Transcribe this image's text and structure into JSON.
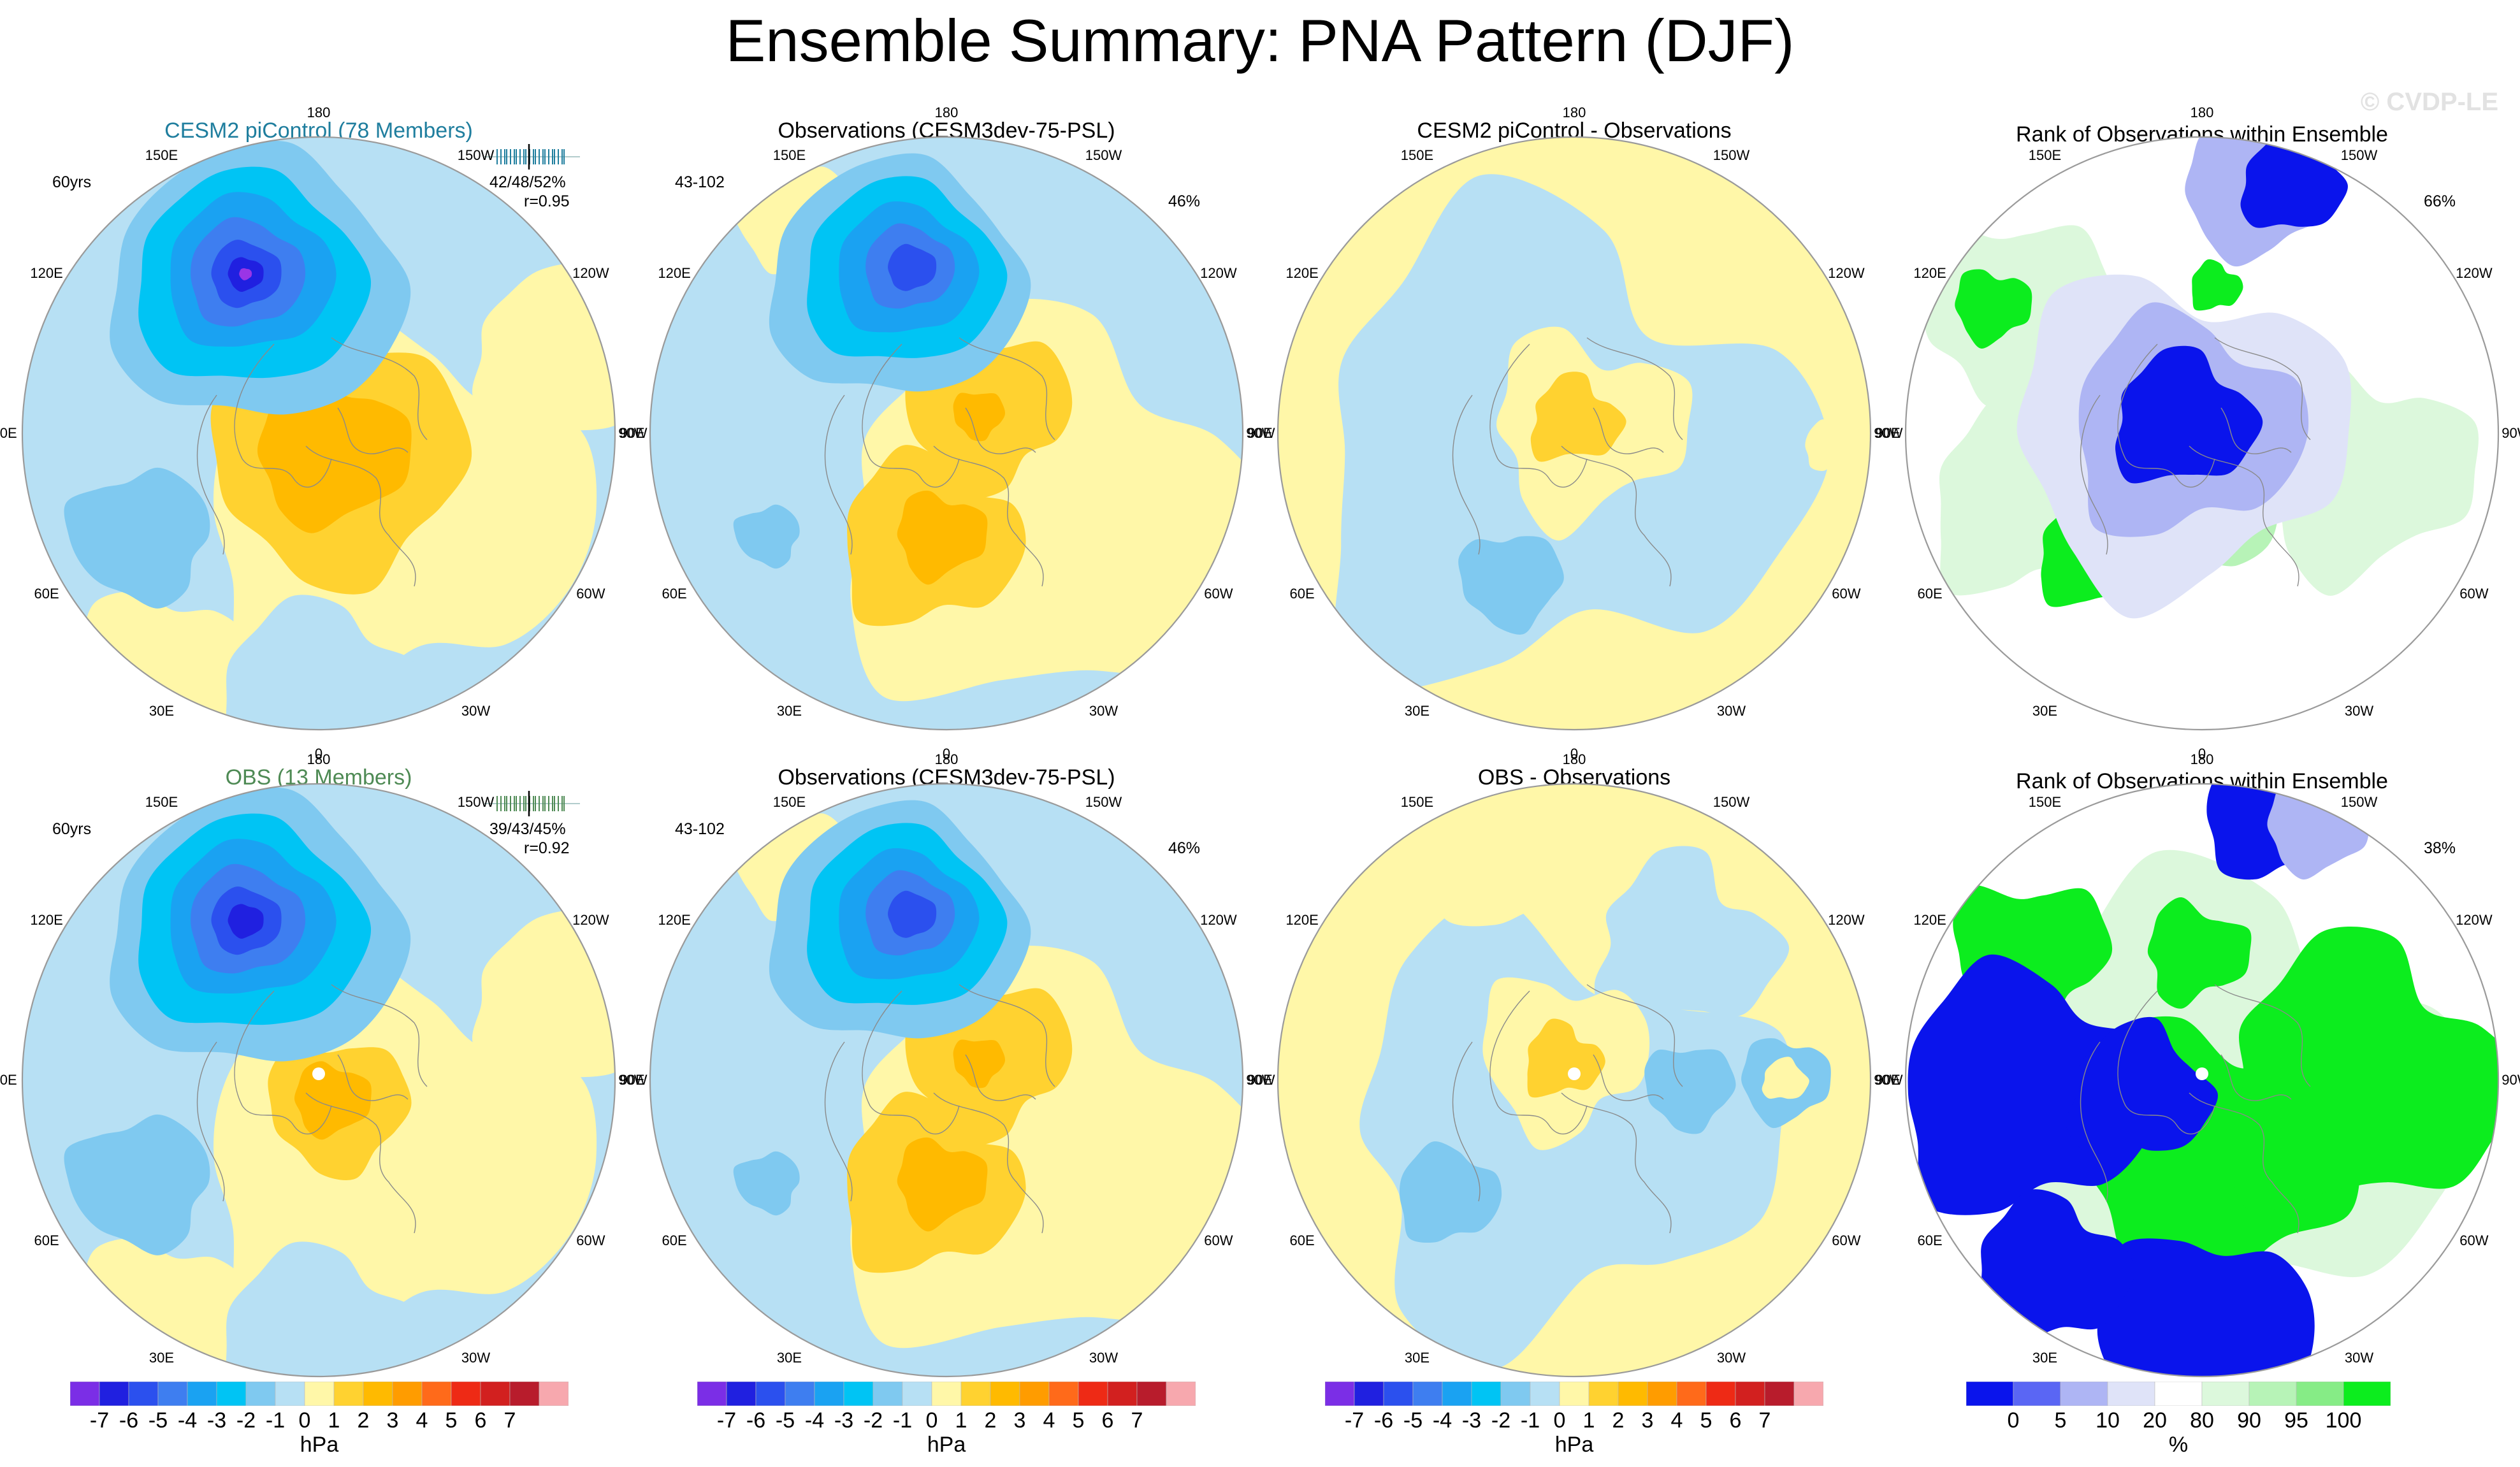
{
  "title": "Ensemble Summary: PNA Pattern (DJF)",
  "watermark": "© CVDP-LE",
  "lon_labels": [
    "180",
    "150E",
    "120E",
    "90E",
    "60E",
    "30E",
    "0",
    "30W",
    "60W",
    "90W",
    "120W",
    "150W"
  ],
  "panels": [
    {
      "id": "p1",
      "title": "CESM2 piControl (78 Members)",
      "style": "cesm",
      "corner": "60yrs",
      "stat_line1": "42/48/52%",
      "stat_line2": "r=0.95",
      "type": "pna1"
    },
    {
      "id": "p2",
      "title": "Observations (CESM3dev-75-PSL)",
      "corner": "43-102",
      "pct": "46%",
      "type": "obs"
    },
    {
      "id": "p3",
      "title": "CESM2 piControl - Observations",
      "type": "diff1"
    },
    {
      "id": "p4",
      "title": "Rank of Observations within Ensemble",
      "pct": "66%",
      "type": "rank1"
    },
    {
      "id": "p5",
      "title": "OBS (13 Members)",
      "style": "obs",
      "corner": "60yrs",
      "stat_line1": "39/43/45%",
      "stat_line2": "r=0.92",
      "type": "pna2"
    },
    {
      "id": "p6",
      "title": "Observations (CESM3dev-75-PSL)",
      "corner": "43-102",
      "pct": "46%",
      "type": "obs"
    },
    {
      "id": "p7",
      "title": "OBS - Observations",
      "type": "diff2"
    },
    {
      "id": "p8",
      "title": "Rank of Observations within Ensemble",
      "pct": "38%",
      "type": "rank2"
    }
  ],
  "colorbar_hpa": {
    "colors": [
      "#7b2ee6",
      "#2020e0",
      "#2b50ee",
      "#3e7ef0",
      "#1aa2f2",
      "#00c4f4",
      "#7fc9f0",
      "#b7e0f4",
      "#fff7a8",
      "#ffd230",
      "#ffba00",
      "#ff9c00",
      "#ff6a1a",
      "#ee2a15",
      "#d2201f",
      "#b81c2c",
      "#f7a8ae"
    ],
    "ticks": [
      "-7",
      "-6",
      "-5",
      "-4",
      "-3",
      "-2",
      "-1",
      "0",
      "1",
      "2",
      "3",
      "4",
      "5",
      "6",
      "7"
    ],
    "unit": "hPa"
  },
  "colorbar_rank": {
    "colors": [
      "#0a14ec",
      "#5a66f4",
      "#aeb5f4",
      "#dfe3f8",
      "#ffffff",
      "#dcf8dc",
      "#b7f3b7",
      "#86ec86",
      "#0ced1e"
    ],
    "ticks": [
      "0",
      "5",
      "10",
      "20",
      "80",
      "90",
      "95",
      "100"
    ],
    "unit": "%"
  }
}
